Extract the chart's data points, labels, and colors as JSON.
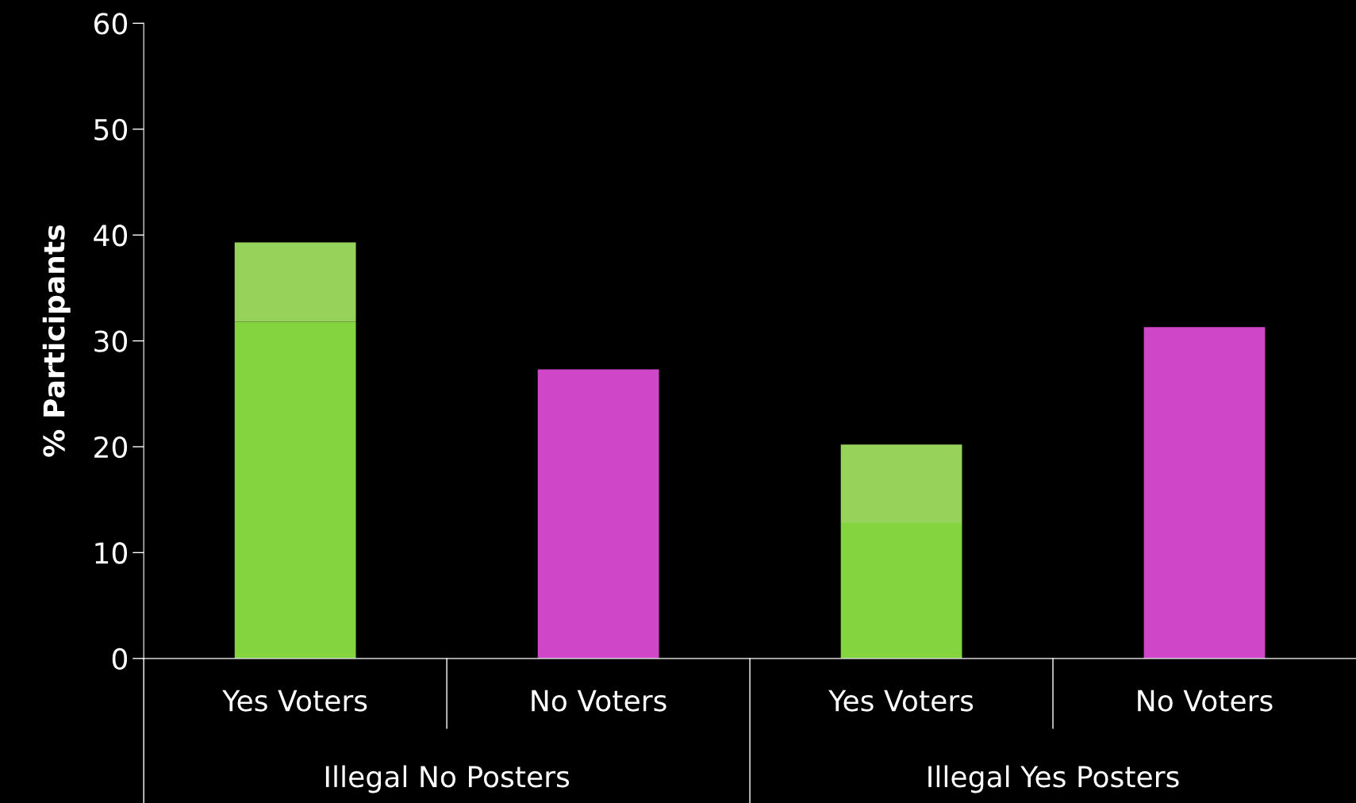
{
  "chart_data": {
    "type": "bar",
    "stacked": true,
    "ylabel": "% Participants",
    "categories": [
      "Yes Voters",
      "No Voters",
      "Yes Voters",
      "No Voters"
    ],
    "series": [
      {
        "color": "#84d440",
        "values": [
          31.8,
          null,
          12.8,
          null
        ]
      },
      {
        "color": "#97d35a",
        "values": [
          7.5,
          null,
          7.4,
          null
        ]
      },
      {
        "color": "#d046c8",
        "values": [
          null,
          27.3,
          null,
          31.3
        ]
      }
    ],
    "annotations": [
      "Illegal No Posters",
      "Illegal Yes Posters"
    ],
    "ylim": [
      0,
      60
    ],
    "yticks": [
      0,
      10,
      20,
      30,
      40,
      50,
      60
    ],
    "grid": false,
    "legend": false
  }
}
